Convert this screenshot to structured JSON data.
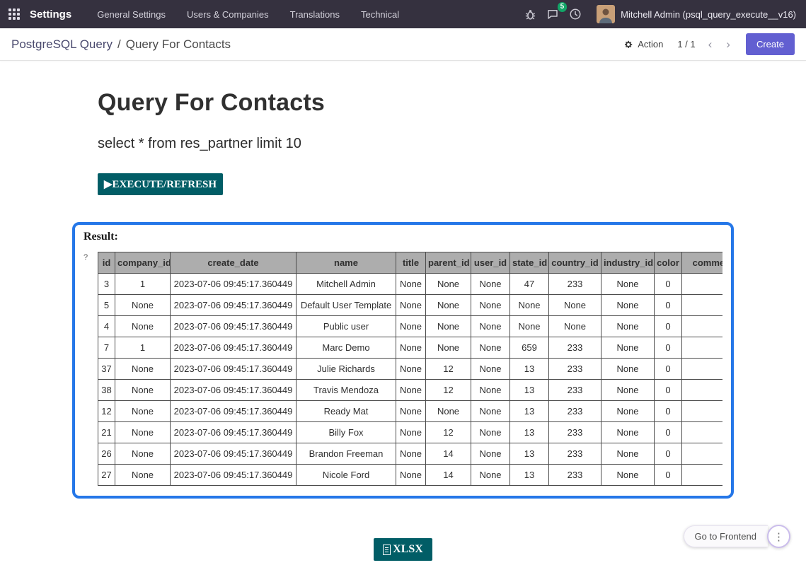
{
  "navbar": {
    "app_title": "Settings",
    "menu_items": [
      "General Settings",
      "Users & Companies",
      "Translations",
      "Technical"
    ],
    "messages_badge_count": "5",
    "user_name": "Mitchell Admin (psql_query_execute__v16)"
  },
  "control_panel": {
    "breadcrumb_parent": "PostgreSQL Query",
    "breadcrumb_separator": "/",
    "breadcrumb_current": "Query For Contacts",
    "action_label": "Action",
    "pager_value": "1 / 1",
    "pager_prev": "‹",
    "pager_next": "›",
    "create_label": "Create"
  },
  "content": {
    "title": "Query For Contacts",
    "query_text": "select * from res_partner limit 10",
    "execute_button_label": "▶EXECUTE/REFRESH",
    "result_label": "Result:",
    "help_mark": "?",
    "xlsx_button_label": "XLSX"
  },
  "table": {
    "columns": [
      "id",
      "company_id",
      "create_date",
      "name",
      "title",
      "parent_id",
      "user_id",
      "state_id",
      "country_id",
      "industry_id",
      "color",
      "comment"
    ],
    "rows": [
      [
        "3",
        "1",
        "2023-07-06 09:45:17.360449",
        "Mitchell Admin",
        "None",
        "None",
        "None",
        "47",
        "233",
        "None",
        "0",
        ""
      ],
      [
        "5",
        "None",
        "2023-07-06 09:45:17.360449",
        "Default User Template",
        "None",
        "None",
        "None",
        "None",
        "None",
        "None",
        "0",
        ""
      ],
      [
        "4",
        "None",
        "2023-07-06 09:45:17.360449",
        "Public user",
        "None",
        "None",
        "None",
        "None",
        "None",
        "None",
        "0",
        ""
      ],
      [
        "7",
        "1",
        "2023-07-06 09:45:17.360449",
        "Marc Demo",
        "None",
        "None",
        "None",
        "659",
        "233",
        "None",
        "0",
        ""
      ],
      [
        "37",
        "None",
        "2023-07-06 09:45:17.360449",
        "Julie Richards",
        "None",
        "12",
        "None",
        "13",
        "233",
        "None",
        "0",
        ""
      ],
      [
        "38",
        "None",
        "2023-07-06 09:45:17.360449",
        "Travis Mendoza",
        "None",
        "12",
        "None",
        "13",
        "233",
        "None",
        "0",
        ""
      ],
      [
        "12",
        "None",
        "2023-07-06 09:45:17.360449",
        "Ready Mat",
        "None",
        "None",
        "None",
        "13",
        "233",
        "None",
        "0",
        ""
      ],
      [
        "21",
        "None",
        "2023-07-06 09:45:17.360449",
        "Billy Fox",
        "None",
        "12",
        "None",
        "13",
        "233",
        "None",
        "0",
        ""
      ],
      [
        "26",
        "None",
        "2023-07-06 09:45:17.360449",
        "Brandon Freeman",
        "None",
        "14",
        "None",
        "13",
        "233",
        "None",
        "0",
        ""
      ],
      [
        "27",
        "None",
        "2023-07-06 09:45:17.360449",
        "Nicole Ford",
        "None",
        "14",
        "None",
        "13",
        "233",
        "None",
        "0",
        ""
      ]
    ]
  },
  "debug_toolbar": {
    "goto_frontend_label": "Go to Frontend",
    "more_icon": "⋮"
  },
  "colors": {
    "navbar_bg": "#35313f",
    "primary_button": "#625fd1",
    "teal_button": "#015d66",
    "result_border": "#2577e8",
    "badge_green": "#12a567",
    "table_header_bg": "#adadad"
  }
}
